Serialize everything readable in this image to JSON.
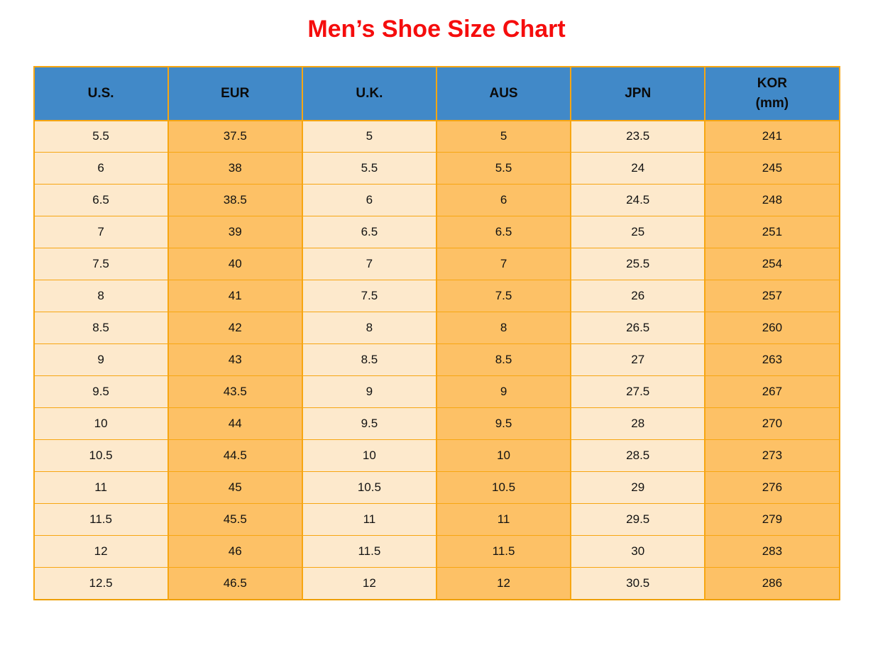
{
  "title": "Men’s Shoe Size Chart",
  "colors": {
    "title": "#f50d0d",
    "header_bg": "#4189c8",
    "col_cream": "#fde9cc",
    "col_orange": "#fdc166",
    "grid_line": "#f7a612",
    "outer_border": "#ee9f05",
    "text": "#121212"
  },
  "table": {
    "headers": [
      "U.S.",
      "EUR",
      "U.K.",
      "AUS",
      "JPN",
      "KOR\n(mm)"
    ]
  },
  "chart_data": {
    "type": "table",
    "title": "Men’s Shoe Size Chart",
    "columns": [
      "U.S.",
      "EUR",
      "U.K.",
      "AUS",
      "JPN",
      "KOR (mm)"
    ],
    "rows": [
      [
        "5.5",
        "37.5",
        "5",
        "5",
        "23.5",
        "241"
      ],
      [
        "6",
        "38",
        "5.5",
        "5.5",
        "24",
        "245"
      ],
      [
        "6.5",
        "38.5",
        "6",
        "6",
        "24.5",
        "248"
      ],
      [
        "7",
        "39",
        "6.5",
        "6.5",
        "25",
        "251"
      ],
      [
        "7.5",
        "40",
        "7",
        "7",
        "25.5",
        "254"
      ],
      [
        "8",
        "41",
        "7.5",
        "7.5",
        "26",
        "257"
      ],
      [
        "8.5",
        "42",
        "8",
        "8",
        "26.5",
        "260"
      ],
      [
        "9",
        "43",
        "8.5",
        "8.5",
        "27",
        "263"
      ],
      [
        "9.5",
        "43.5",
        "9",
        "9",
        "27.5",
        "267"
      ],
      [
        "10",
        "44",
        "9.5",
        "9.5",
        "28",
        "270"
      ],
      [
        "10.5",
        "44.5",
        "10",
        "10",
        "28.5",
        "273"
      ],
      [
        "11",
        "45",
        "10.5",
        "10.5",
        "29",
        "276"
      ],
      [
        "11.5",
        "45.5",
        "11",
        "11",
        "29.5",
        "279"
      ],
      [
        "12",
        "46",
        "11.5",
        "11.5",
        "30",
        "283"
      ],
      [
        "12.5",
        "46.5",
        "12",
        "12",
        "30.5",
        "286"
      ]
    ],
    "layout": {
      "column_fill_pattern": [
        "cream",
        "orange",
        "cream",
        "orange",
        "cream",
        "orange"
      ],
      "header_fill": "blue",
      "grid": "on"
    }
  }
}
